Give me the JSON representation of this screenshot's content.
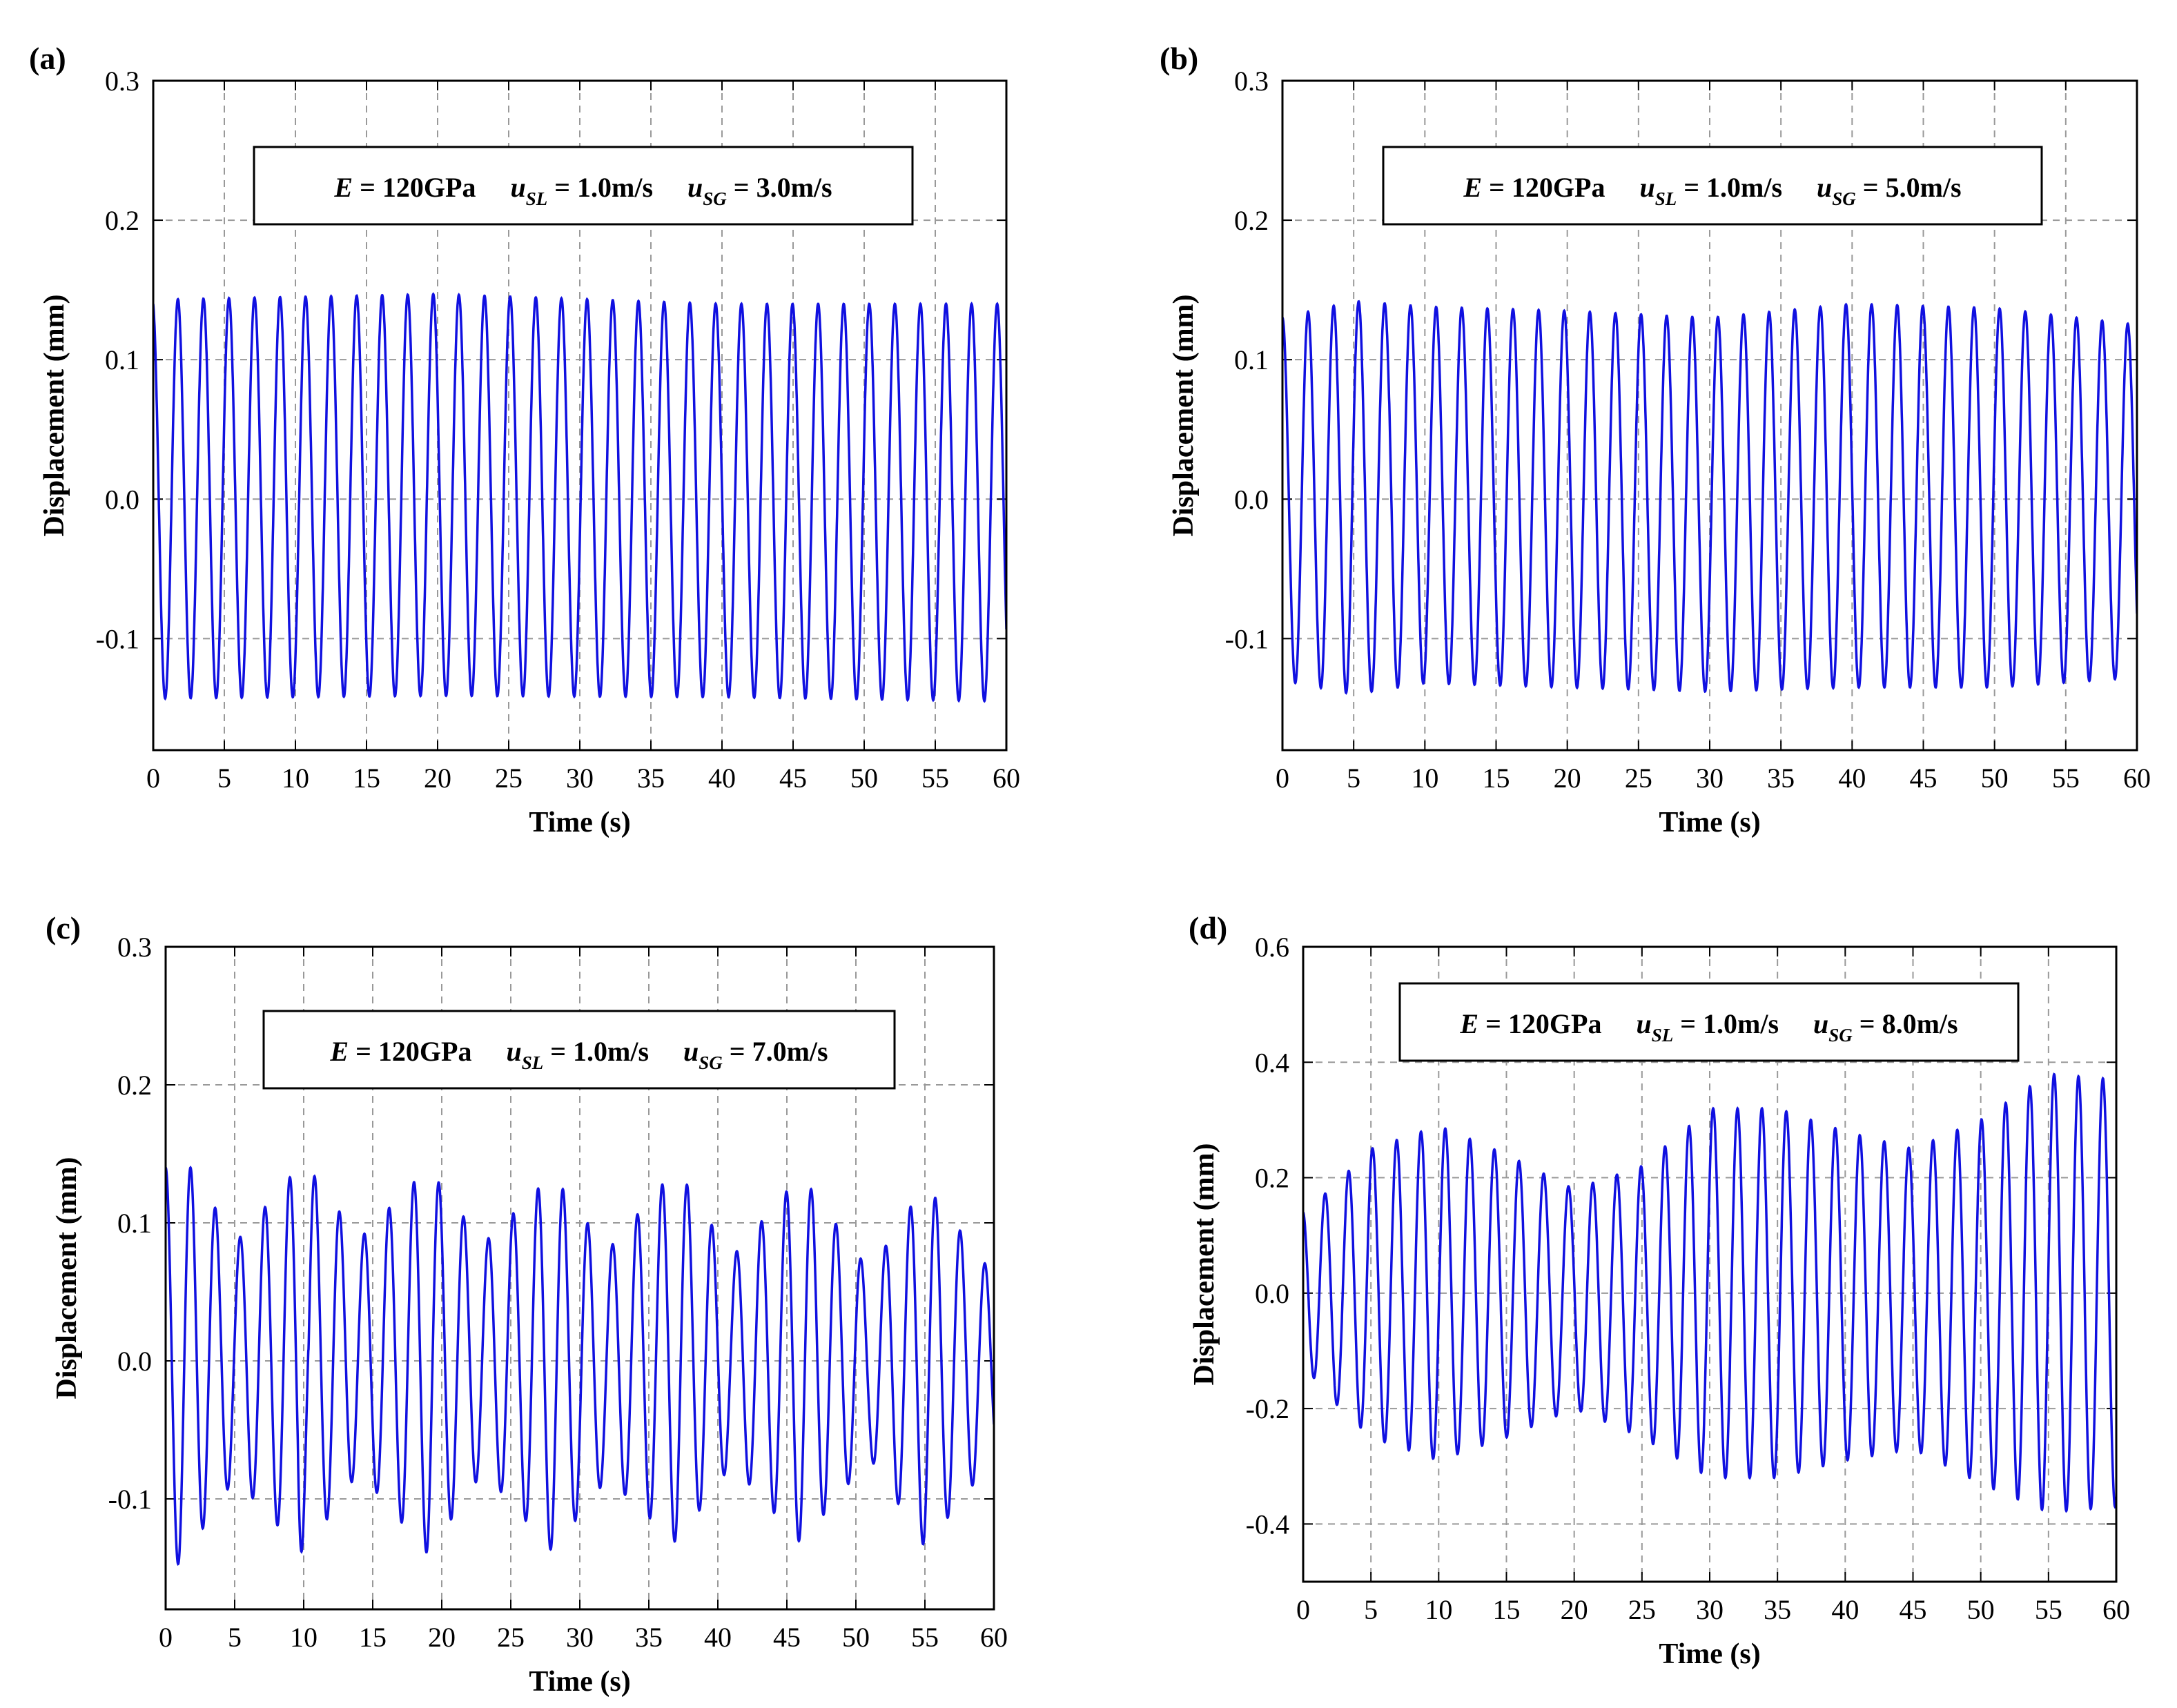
{
  "figure": {
    "series_color": "#1010e0"
  },
  "chart_data": [
    {
      "panel_label": "(a)",
      "type": "line",
      "xlabel": "Time (s)",
      "ylabel": "Displacement (mm)",
      "xlim": [
        0,
        60
      ],
      "ylim": [
        -0.18,
        0.3
      ],
      "xticks": [
        "0",
        "5",
        "10",
        "15",
        "20",
        "25",
        "30",
        "35",
        "40",
        "45",
        "50",
        "55",
        "60"
      ],
      "yticks": [
        "0.3",
        "0.2",
        "0.1",
        "0.0",
        "-0.1"
      ],
      "ytick_values": [
        0.3,
        0.2,
        0.1,
        0.0,
        -0.1
      ],
      "grid": true,
      "annotation": {
        "E_sym": "E",
        "E_val": " = 120GPa",
        "u": "u",
        "sub1": "SL",
        "val1": " = 1.0m/s",
        "sub2": "SG",
        "val2": " = 3.0m/s"
      },
      "series": [
        {
          "name": "displacement",
          "frequency_hz": 0.556,
          "start_value": 0.14,
          "upper_envelope": {
            "t": [
              0,
              20,
              40,
              60
            ],
            "v": [
              0.143,
              0.147,
              0.14,
              0.14
            ]
          },
          "lower_envelope": {
            "t": [
              0,
              20,
              40,
              60
            ],
            "v": [
              -0.143,
              -0.141,
              -0.142,
              -0.145
            ]
          }
        }
      ]
    },
    {
      "panel_label": "(b)",
      "type": "line",
      "xlabel": "Time (s)",
      "ylabel": "Displacement (mm)",
      "xlim": [
        0,
        60
      ],
      "ylim": [
        -0.18,
        0.3
      ],
      "xticks": [
        "0",
        "5",
        "10",
        "15",
        "20",
        "25",
        "30",
        "35",
        "40",
        "45",
        "50",
        "55",
        "60"
      ],
      "yticks": [
        "0.3",
        "0.2",
        "0.1",
        "0.0",
        "-0.1"
      ],
      "ytick_values": [
        0.3,
        0.2,
        0.1,
        0.0,
        -0.1
      ],
      "grid": true,
      "annotation": {
        "E_sym": "E",
        "E_val": " = 120GPa",
        "u": "u",
        "sub1": "SL",
        "val1": " = 1.0m/s",
        "sub2": "SG",
        "val2": " = 5.0m/s"
      },
      "series": [
        {
          "name": "displacement",
          "frequency_hz": 0.556,
          "start_value": 0.14,
          "upper_envelope": {
            "t": [
              0,
              5,
              10,
              20,
              30,
              40,
              50,
              60
            ],
            "v": [
              0.13,
              0.142,
              0.138,
              0.135,
              0.13,
              0.14,
              0.137,
              0.125
            ]
          },
          "lower_envelope": {
            "t": [
              0,
              5,
              10,
              20,
              30,
              40,
              50,
              60
            ],
            "v": [
              -0.13,
              -0.14,
              -0.132,
              -0.135,
              -0.138,
              -0.135,
              -0.135,
              -0.128
            ]
          }
        }
      ]
    },
    {
      "panel_label": "(c)",
      "type": "line",
      "xlabel": "Time (s)",
      "ylabel": "Displacement (mm)",
      "xlim": [
        0,
        60
      ],
      "ylim": [
        -0.18,
        0.3
      ],
      "xticks": [
        "0",
        "5",
        "10",
        "15",
        "20",
        "25",
        "30",
        "35",
        "40",
        "45",
        "50",
        "55",
        "60"
      ],
      "yticks": [
        "0.3",
        "0.2",
        "0.1",
        "0.0",
        "-0.1"
      ],
      "ytick_values": [
        0.3,
        0.2,
        0.1,
        0.0,
        -0.1
      ],
      "grid": true,
      "annotation": {
        "E_sym": "E",
        "E_val": " = 120GPa",
        "u": "u",
        "sub1": "SL",
        "val1": " = 1.0m/s",
        "sub2": "SG",
        "val2": " = 7.0m/s"
      },
      "series": [
        {
          "name": "displacement",
          "frequency_hz": 0.556,
          "start_value": 0.14,
          "upper_envelope": {
            "t": [
              0,
              2,
              5,
              10,
              14,
              19,
              23,
              28,
              32,
              37,
              41,
              46,
              51,
              55,
              60
            ],
            "v": [
              0.14,
              0.14,
              0.085,
              0.145,
              0.088,
              0.14,
              0.085,
              0.135,
              0.08,
              0.14,
              0.075,
              0.135,
              0.065,
              0.128,
              0.062
            ]
          },
          "lower_envelope": {
            "t": [
              0,
              1,
              5,
              10,
              14,
              19,
              23,
              28,
              32,
              37,
              41,
              46,
              51,
              55,
              60
            ],
            "v": [
              -0.14,
              -0.148,
              -0.085,
              -0.14,
              -0.08,
              -0.14,
              -0.08,
              -0.138,
              -0.085,
              -0.132,
              -0.075,
              -0.132,
              -0.07,
              -0.135,
              -0.07
            ]
          }
        }
      ]
    },
    {
      "panel_label": "(d)",
      "type": "line",
      "xlabel": "Time (s)",
      "ylabel": "Displacement (mm)",
      "xlim": [
        0,
        60
      ],
      "ylim": [
        -0.5,
        0.6
      ],
      "xticks": [
        "0",
        "5",
        "10",
        "15",
        "20",
        "25",
        "30",
        "35",
        "40",
        "45",
        "50",
        "55",
        "60"
      ],
      "yticks": [
        "0.6",
        "0.4",
        "0.2",
        "0.0",
        "-0.2",
        "-0.4"
      ],
      "ytick_values": [
        0.6,
        0.4,
        0.2,
        0.0,
        -0.2,
        -0.4
      ],
      "grid": true,
      "annotation": {
        "E_sym": "E",
        "E_val": " = 120GPa",
        "u": "u",
        "sub1": "SL",
        "val1": " = 1.0m/s",
        "sub2": "SG",
        "val2": " = 8.0m/s"
      },
      "series": [
        {
          "name": "displacement",
          "frequency_hz": 0.556,
          "start_value": 0.14,
          "upper_envelope": {
            "t": [
              0,
              2,
              5,
              10,
              15,
              20,
              25,
              30,
              35,
              40,
              45,
              50,
              55,
              60
            ],
            "v": [
              0.14,
              0.18,
              0.25,
              0.29,
              0.24,
              0.18,
              0.22,
              0.32,
              0.32,
              0.28,
              0.25,
              0.3,
              0.38,
              0.37
            ]
          },
          "lower_envelope": {
            "t": [
              0,
              1,
              5,
              10,
              15,
              20,
              25,
              30,
              35,
              40,
              45,
              50,
              55,
              60
            ],
            "v": [
              -0.1,
              -0.16,
              -0.25,
              -0.29,
              -0.25,
              -0.2,
              -0.25,
              -0.32,
              -0.32,
              -0.29,
              -0.27,
              -0.33,
              -0.38,
              -0.37
            ]
          }
        }
      ]
    }
  ]
}
